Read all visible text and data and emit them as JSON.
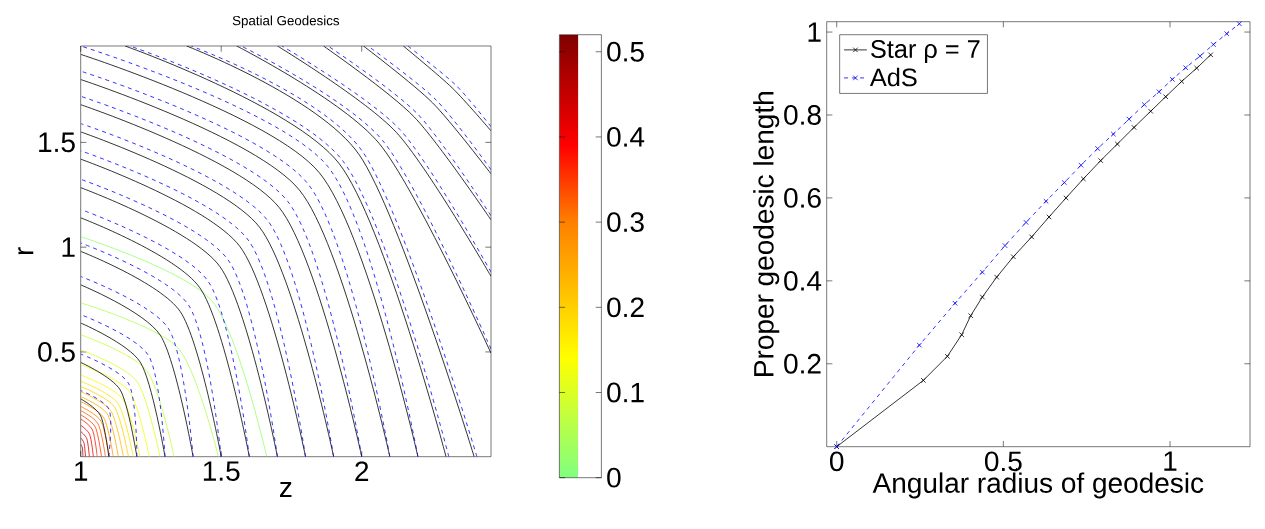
{
  "chart_data": [
    {
      "type": "line",
      "title": "Spatial Geodesics",
      "xlabel": "z",
      "ylabel": "r",
      "xlim": [
        1,
        2.46
      ],
      "ylim": [
        0,
        1.96
      ],
      "xticks": [
        1,
        1.5,
        2
      ],
      "yticks": [
        0.5,
        1,
        1.5
      ],
      "clim": [
        0,
        0.52
      ],
      "cticks": [
        0,
        0.1,
        0.2,
        0.3,
        0.4,
        0.5
      ],
      "marker": "none",
      "series": [
        {
          "color": "#97ff69",
          "line_style": "solid",
          "x": [
            1.662,
            1.468,
            1
          ],
          "values": [
            0,
            0.742,
            1.05
          ]
        },
        {
          "color": "#adff52",
          "line_style": "solid",
          "x": [
            1.49,
            1.346,
            1
          ],
          "values": [
            0,
            0.519,
            0.734
          ]
        },
        {
          "color": "#c4ff3b",
          "line_style": "solid",
          "x": [
            1.332,
            1.235,
            1
          ],
          "values": [
            0,
            0.411,
            0.582
          ]
        },
        {
          "color": "#dbff25",
          "line_style": "solid",
          "x": [
            1.282,
            1.199,
            1
          ],
          "values": [
            0,
            0.361,
            0.51
          ]
        },
        {
          "color": "#f1ff0e",
          "line_style": "solid",
          "x": [
            1.244,
            1.173,
            1
          ],
          "values": [
            0,
            0.311,
            0.44
          ]
        },
        {
          "color": "#fff700",
          "line_style": "solid",
          "x": [
            1.211,
            1.149,
            1
          ],
          "values": [
            0,
            0.276,
            0.39
          ]
        },
        {
          "color": "#ffe300",
          "line_style": "solid",
          "x": [
            1.187,
            1.132,
            1
          ],
          "values": [
            0,
            0.255,
            0.36
          ]
        },
        {
          "color": "#ffcf00",
          "line_style": "solid",
          "x": [
            1.17,
            1.12,
            1
          ],
          "values": [
            0,
            0.237,
            0.335
          ]
        },
        {
          "color": "#ffbc00",
          "line_style": "solid",
          "x": [
            1.152,
            1.107,
            1
          ],
          "values": [
            0,
            0.219,
            0.31
          ]
        },
        {
          "color": "#ffa800",
          "line_style": "solid",
          "x": [
            1.134,
            1.095,
            1
          ],
          "values": [
            0,
            0.203,
            0.287
          ]
        },
        {
          "color": "#ff9400",
          "line_style": "solid",
          "x": [
            1.116,
            1.082,
            1
          ],
          "values": [
            0,
            0.186,
            0.263
          ]
        },
        {
          "color": "#ff8000",
          "line_style": "solid",
          "x": [
            1.102,
            1.072,
            1
          ],
          "values": [
            0,
            0.17,
            0.24
          ]
        },
        {
          "color": "#ff5c00",
          "line_style": "solid",
          "x": [
            1.088,
            1.062,
            1
          ],
          "values": [
            0,
            0.156,
            0.22
          ]
        },
        {
          "color": "#ff3900",
          "line_style": "solid",
          "x": [
            1.074,
            1.052,
            1
          ],
          "values": [
            0,
            0.141,
            0.2
          ]
        },
        {
          "color": "#ff1500",
          "line_style": "solid",
          "x": [
            1.059,
            1.042,
            1
          ],
          "values": [
            0,
            0.127,
            0.18
          ]
        },
        {
          "color": "#f50000",
          "line_style": "solid",
          "x": [
            1.045,
            1.032,
            1
          ],
          "values": [
            0,
            0.106,
            0.15
          ]
        },
        {
          "color": "#dd0000",
          "line_style": "solid",
          "x": [
            1.031,
            1.022,
            1
          ],
          "values": [
            0,
            0.085,
            0.12
          ]
        },
        {
          "color": "#c40000",
          "line_style": "solid",
          "x": [
            1.017,
            1.012,
            1
          ],
          "values": [
            0,
            0.064,
            0.09
          ]
        },
        {
          "color": "#ac0000",
          "line_style": "solid",
          "x": [
            1.008,
            1.006,
            1
          ],
          "values": [
            0,
            0.042,
            0.06
          ]
        },
        {
          "color": "#000000",
          "line_style": "solid",
          "x": [
            1.1,
            1.071,
            1
          ],
          "values": [
            0,
            0.195,
            0.276
          ]
        },
        {
          "color": "#000000",
          "line_style": "solid",
          "x": [
            1.2,
            1.141,
            1
          ],
          "values": [
            0,
            0.318,
            0.45
          ]
        },
        {
          "color": "#000000",
          "line_style": "solid",
          "x": [
            1.3,
            1.212,
            1
          ],
          "values": [
            0,
            0.451,
            0.638
          ]
        },
        {
          "color": "#000000",
          "line_style": "solid",
          "x": [
            1.4,
            1.283,
            1
          ],
          "values": [
            0,
            0.58,
            0.82
          ]
        },
        {
          "color": "#000000",
          "line_style": "solid",
          "x": [
            1.5,
            1.354,
            1
          ],
          "values": [
            0,
            0.693,
            0.98
          ]
        },
        {
          "color": "#000000",
          "line_style": "solid",
          "x": [
            1.6,
            1.424,
            1
          ],
          "values": [
            0,
            0.806,
            1.14
          ]
        },
        {
          "color": "#000000",
          "line_style": "solid",
          "x": [
            1.7,
            1.495,
            1
          ],
          "values": [
            0,
            0.908,
            1.284
          ]
        },
        {
          "color": "#000000",
          "line_style": "solid",
          "x": [
            1.8,
            1.566,
            1
          ],
          "values": [
            0,
            1.004,
            1.42
          ]
        },
        {
          "color": "#000000",
          "line_style": "solid",
          "x": [
            1.9,
            1.636,
            1
          ],
          "values": [
            0,
            1.096,
            1.55
          ]
        },
        {
          "color": "#000000",
          "line_style": "solid",
          "x": [
            2,
            1.707,
            1
          ],
          "values": [
            0,
            1.188,
            1.68
          ]
        },
        {
          "color": "#000000",
          "line_style": "solid",
          "x": [
            2.1,
            1.778,
            1
          ],
          "values": [
            0,
            1.273,
            1.8
          ]
        },
        {
          "color": "#000000",
          "line_style": "solid",
          "x": [
            2.2,
            1.848,
            1
          ],
          "values": [
            0,
            1.357,
            1.92
          ]
        },
        {
          "color": "#000000",
          "line_style": "solid",
          "x": [
            2.3,
            1.919,
            1.158
          ],
          "values": [
            0,
            1.4,
            1.96
          ]
        },
        {
          "color": "#000000",
          "line_style": "solid",
          "x": [
            2.4,
            1.99,
            1.377
          ],
          "values": [
            0,
            1.443,
            1.96
          ]
        },
        {
          "color": "#000000",
          "line_style": "solid",
          "x": [
            2.46,
            2.062,
            1.555
          ],
          "values": [
            0.494,
            1.495,
            1.96
          ]
        },
        {
          "color": "#000000",
          "line_style": "solid",
          "x": [
            2.46,
            2.123,
            1.7
          ],
          "values": [
            0.861,
            1.548,
            1.96
          ]
        },
        {
          "color": "#000000",
          "line_style": "solid",
          "x": [
            2.46,
            2.187,
            1.864
          ],
          "values": [
            1.13,
            1.621,
            1.96
          ]
        },
        {
          "color": "#000000",
          "line_style": "solid",
          "x": [
            2.46,
            2.252,
            2.006
          ],
          "values": [
            1.35,
            1.689,
            1.96
          ]
        },
        {
          "color": "#000000",
          "line_style": "solid",
          "x": [
            2.46,
            2.322,
            2.148
          ],
          "values": [
            1.555,
            1.76,
            1.96
          ]
        },
        {
          "color": "#0000ff",
          "line_style": "dashed",
          "x": [
            1.1,
            1.101,
            1
          ],
          "values": [
            0,
            0.225,
            0.316
          ]
        },
        {
          "color": "#0000ff",
          "line_style": "dashed",
          "x": [
            1.2,
            1.171,
            1
          ],
          "values": [
            0,
            0.348,
            0.49
          ]
        },
        {
          "color": "#0000ff",
          "line_style": "dashed",
          "x": [
            1.3,
            1.242,
            1
          ],
          "values": [
            0,
            0.481,
            0.678
          ]
        },
        {
          "color": "#0000ff",
          "line_style": "dashed",
          "x": [
            1.4,
            1.313,
            1
          ],
          "values": [
            0,
            0.61,
            0.86
          ]
        },
        {
          "color": "#0000ff",
          "line_style": "dashed",
          "x": [
            1.5,
            1.384,
            1
          ],
          "values": [
            0,
            0.723,
            1.02
          ]
        },
        {
          "color": "#0000ff",
          "line_style": "dashed",
          "x": [
            1.6,
            1.454,
            1
          ],
          "values": [
            0,
            0.836,
            1.18
          ]
        },
        {
          "color": "#0000ff",
          "line_style": "dashed",
          "x": [
            1.7,
            1.525,
            1
          ],
          "values": [
            0,
            0.938,
            1.324
          ]
        },
        {
          "color": "#0000ff",
          "line_style": "dashed",
          "x": [
            1.8,
            1.596,
            1
          ],
          "values": [
            0,
            1.034,
            1.46
          ]
        },
        {
          "color": "#0000ff",
          "line_style": "dashed",
          "x": [
            1.9,
            1.666,
            1
          ],
          "values": [
            0,
            1.126,
            1.59
          ]
        },
        {
          "color": "#0000ff",
          "line_style": "dashed",
          "x": [
            2,
            1.737,
            1
          ],
          "values": [
            0,
            1.218,
            1.72
          ]
        },
        {
          "color": "#0000ff",
          "line_style": "dashed",
          "x": [
            2.1,
            1.808,
            1
          ],
          "values": [
            0,
            1.303,
            1.84
          ]
        },
        {
          "color": "#0000ff",
          "line_style": "dashed",
          "x": [
            2.2,
            1.878,
            1
          ],
          "values": [
            0,
            1.387,
            1.96
          ]
        },
        {
          "color": "#0000ff",
          "line_style": "dashed",
          "x": [
            2.31,
            1.932,
            1.175
          ],
          "values": [
            0,
            1.413,
            1.96
          ]
        },
        {
          "color": "#0000ff",
          "line_style": "dashed",
          "x": [
            2.41,
            2.003,
            1.393
          ],
          "values": [
            0,
            1.456,
            1.96
          ]
        },
        {
          "color": "#0000ff",
          "line_style": "dashed",
          "x": [
            2.46,
            2.075,
            1.571
          ],
          "values": [
            0.514,
            1.508,
            1.96
          ]
        },
        {
          "color": "#0000ff",
          "line_style": "dashed",
          "x": [
            2.46,
            2.136,
            1.716
          ],
          "values": [
            0.881,
            1.561,
            1.96
          ]
        },
        {
          "color": "#0000ff",
          "line_style": "dashed",
          "x": [
            2.46,
            2.2,
            1.88
          ],
          "values": [
            1.15,
            1.634,
            1.96
          ]
        },
        {
          "color": "#0000ff",
          "line_style": "dashed",
          "x": [
            2.46,
            2.265,
            2.022
          ],
          "values": [
            1.37,
            1.702,
            1.96
          ]
        },
        {
          "color": "#0000ff",
          "line_style": "dashed",
          "x": [
            2.46,
            2.335,
            2.164
          ],
          "values": [
            1.575,
            1.773,
            1.96
          ]
        }
      ]
    },
    {
      "type": "line",
      "xlabel": "Angular radius of geodesic",
      "ylabel": "Proper geodesic length",
      "xlim": [
        -0.03,
        1.24
      ],
      "ylim": [
        0,
        1.025
      ],
      "xticks": [
        0,
        0.5,
        1
      ],
      "yticks": [
        0.2,
        0.4,
        0.6,
        0.8,
        1
      ],
      "legend": "top left",
      "marker": "cross",
      "series": [
        {
          "name": "Star ρ = 7",
          "color": "#000000",
          "line_style": "solid",
          "x": [
            0,
            0.26,
            0.332,
            0.375,
            0.402,
            0.437,
            0.48,
            0.53,
            0.585,
            0.637,
            0.688,
            0.74,
            0.792,
            0.842,
            0.892,
            0.942,
            0.987,
            1.035,
            1.08,
            1.122
          ],
          "values": [
            0,
            0.16,
            0.218,
            0.27,
            0.316,
            0.361,
            0.409,
            0.458,
            0.506,
            0.554,
            0.6,
            0.646,
            0.69,
            0.73,
            0.77,
            0.809,
            0.844,
            0.881,
            0.913,
            0.945
          ]
        },
        {
          "name": "AdS",
          "color": "#0000ff",
          "line_style": "dashed",
          "x": [
            0,
            0.248,
            0.355,
            0.437,
            0.505,
            0.568,
            0.628,
            0.683,
            0.733,
            0.783,
            0.83,
            0.877,
            0.923,
            0.967,
            1.007,
            1.047,
            1.09,
            1.13,
            1.17,
            1.208
          ],
          "values": [
            0,
            0.245,
            0.346,
            0.421,
            0.485,
            0.541,
            0.592,
            0.637,
            0.679,
            0.719,
            0.754,
            0.79,
            0.825,
            0.856,
            0.886,
            0.914,
            0.942,
            0.97,
            0.996,
            1.02
          ]
        }
      ]
    }
  ]
}
